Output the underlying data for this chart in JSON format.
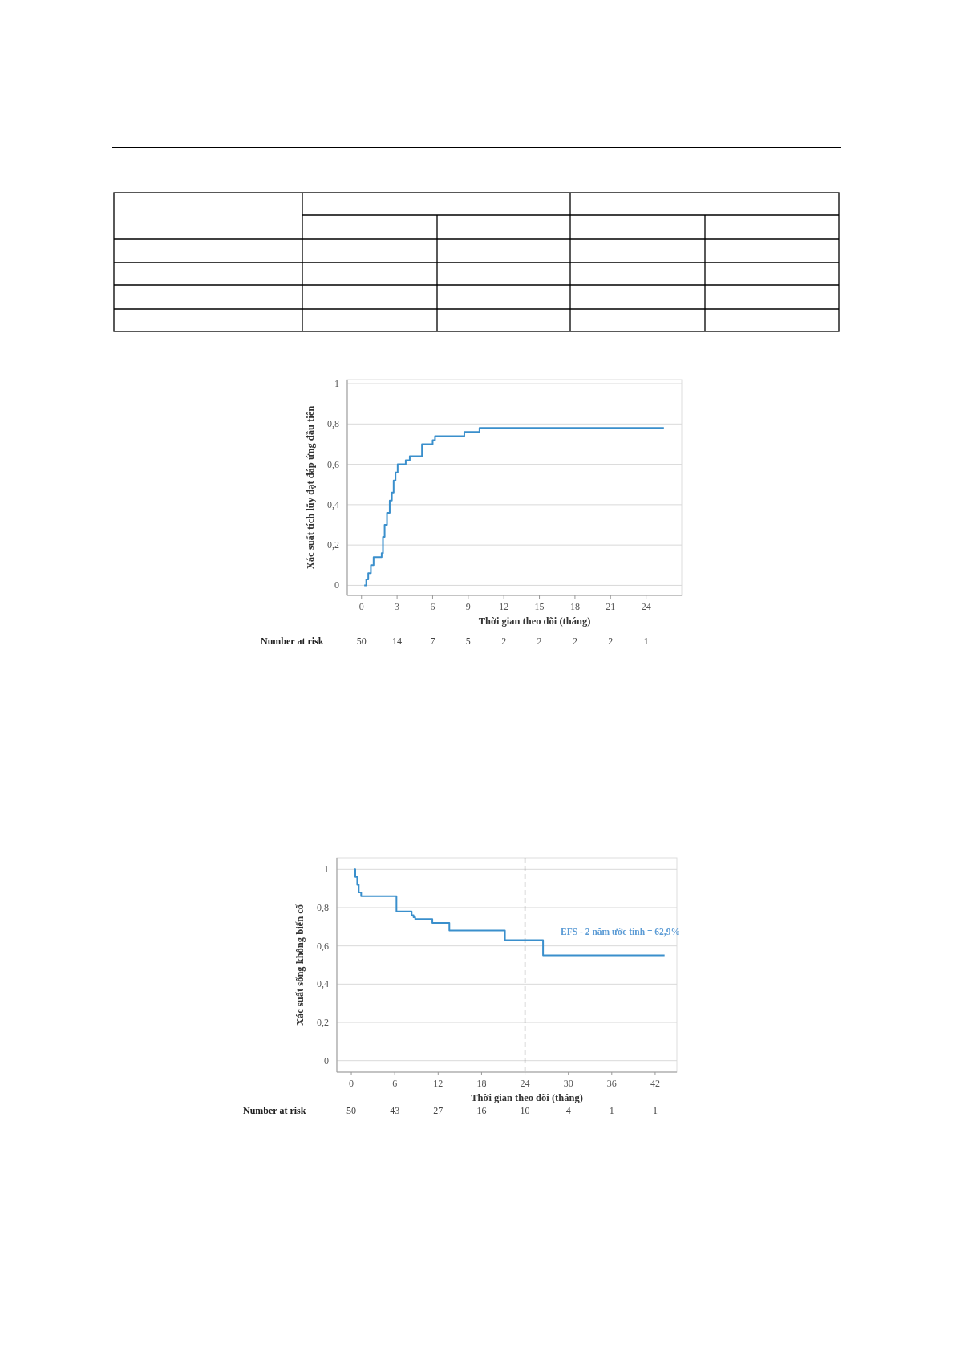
{
  "chart_data": [
    {
      "type": "step",
      "ylabel": "Xác suất tích lũy đạt đáp ứng đầu tiên",
      "xlabel": "Thời gian theo dõi (tháng)",
      "xlim": [
        -1.2,
        27
      ],
      "xticks": [
        {
          "value": 0,
          "label": "0"
        },
        3,
        6,
        9,
        12,
        15,
        18,
        21,
        24
      ],
      "ylim": [
        -0.05,
        1.02
      ],
      "yticks": [
        {
          "value": 0,
          "label": "0"
        },
        {
          "value": 0.2,
          "label": "0,2"
        },
        {
          "value": 0.4,
          "label": "0,4"
        },
        {
          "value": 0.6,
          "label": "0,6"
        },
        {
          "value": 0.8,
          "label": "0,8"
        },
        1
      ],
      "grid": "y",
      "series": [
        {
          "color": "#3a8fcc",
          "x": [
            0.23,
            0.4,
            0.57,
            0.79,
            1.02,
            1.7,
            1.81,
            1.95,
            2.15,
            2.38,
            2.56,
            2.71,
            2.87,
            3.05,
            3.73,
            4.07,
            5.1,
            6.0,
            6.2,
            8.67,
            9.95,
            25.5
          ],
          "values": [
            0,
            0.03,
            0.06,
            0.1,
            0.14,
            0.16,
            0.24,
            0.3,
            0.36,
            0.42,
            0.46,
            0.52,
            0.56,
            0.6,
            0.62,
            0.64,
            0.7,
            0.72,
            0.74,
            0.76,
            0.78,
            0.78
          ]
        }
      ],
      "annotations": [
        "Number at risk",
        "50",
        "14",
        "7",
        "5",
        "2",
        "2",
        "2",
        "2",
        "1"
      ]
    },
    {
      "type": "step",
      "ylabel": "Xác suất sống không biến cố",
      "xlabel": "Thời gian theo dõi (tháng)",
      "xlim": [
        -2,
        45
      ],
      "xticks": [
        {
          "value": 0,
          "label": "0"
        },
        6,
        12,
        18,
        24,
        30,
        36,
        42
      ],
      "ylim": [
        -0.06,
        1.06
      ],
      "yticks": [
        {
          "value": 0,
          "label": "0"
        },
        {
          "value": 0.2,
          "label": "0,2"
        },
        {
          "value": 0.4,
          "label": "0,4"
        },
        {
          "value": 0.6,
          "label": "0,6"
        },
        {
          "value": 0.8,
          "label": "0,8"
        },
        1
      ],
      "grid": "y",
      "ref_lines": [
        {
          "axis": "x",
          "value": 24,
          "color": "#888888",
          "line_style": "dashed"
        }
      ],
      "series": [
        {
          "color": "#3a8fcc",
          "x": [
            0.33,
            0.55,
            0.82,
            1.03,
            1.36,
            6.24,
            8.34,
            8.6,
            8.83,
            11.2,
            13.55,
            21.23,
            26.5,
            43.3
          ],
          "values": [
            1,
            0.96,
            0.92,
            0.88,
            0.86,
            0.78,
            0.76,
            0.75,
            0.74,
            0.72,
            0.68,
            0.63,
            0.55,
            0.55
          ]
        }
      ],
      "annotations": [
        "Number at risk",
        "50",
        "43",
        "27",
        "16",
        "10",
        "4",
        "1",
        "1",
        "EFS - 2 năm ước tính = 62,9%"
      ]
    }
  ]
}
